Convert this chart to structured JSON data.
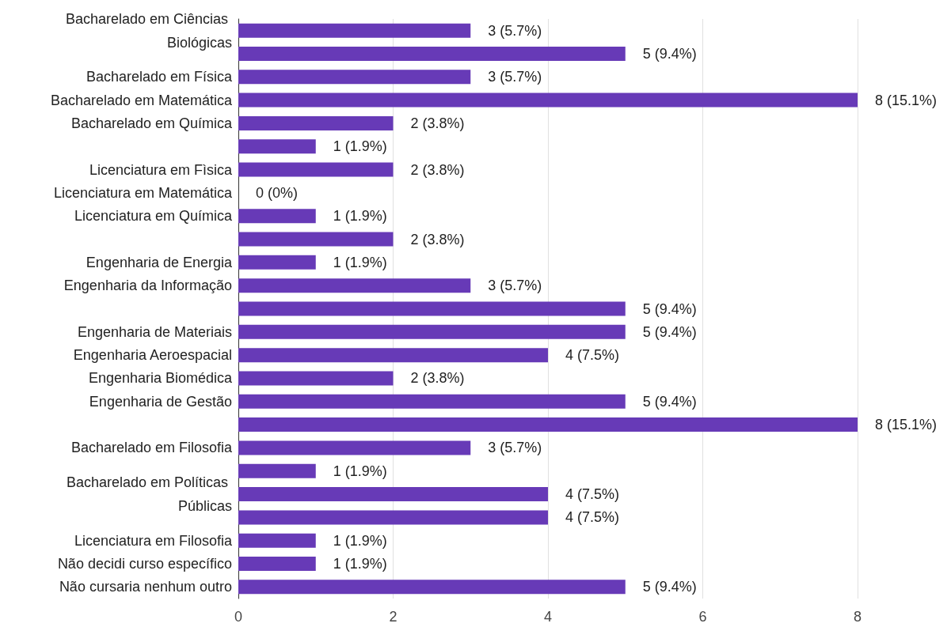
{
  "chart_data": {
    "type": "bar",
    "orientation": "horizontal",
    "color": "#673ab7",
    "categories": [
      "Bacharelado em Ciências Biológicas",
      null,
      "Bacharelado em Física",
      "Bacharelado em Matemática",
      "Bacharelado em Química",
      null,
      "Licenciatura em Fìsica",
      "Licenciatura em Matemática",
      "Licenciatura em Química",
      null,
      "Engenharia de Energia",
      "Engenharia da Informação",
      null,
      "Engenharia de Materiais",
      "Engenharia Aeroespacial",
      "Engenharia Biomédica",
      "Engenharia de Gestão",
      null,
      "Bacharelado em Filosofia",
      null,
      "Bacharelado em Políticas Públicas",
      null,
      "Licenciatura em Filosofia",
      "Não decidi curso específico",
      "Não cursaria nenhum outro"
    ],
    "values": [
      3,
      5,
      3,
      8,
      2,
      1,
      2,
      0,
      1,
      2,
      1,
      3,
      5,
      5,
      4,
      2,
      5,
      8,
      3,
      1,
      4,
      4,
      1,
      1,
      5
    ],
    "value_labels": [
      "3 (5.7%)",
      "5 (9.4%)",
      "3 (5.7%)",
      "8 (15.1%)",
      "2 (3.8%)",
      "1 (1.9%)",
      "2 (3.8%)",
      "0 (0%)",
      "1 (1.9%)",
      "2 (3.8%)",
      "1 (1.9%)",
      "3 (5.7%)",
      "5 (9.4%)",
      "5 (9.4%)",
      "4 (7.5%)",
      "2 (3.8%)",
      "5 (9.4%)",
      "8 (15.1%)",
      "3 (5.7%)",
      "1 (1.9%)",
      "4 (7.5%)",
      "4 (7.5%)",
      "1 (1.9%)",
      "1 (1.9%)",
      "5 (9.4%)"
    ],
    "xlim": [
      0,
      8
    ],
    "xticks": [
      0,
      2,
      4,
      6,
      8
    ],
    "grid": "x"
  }
}
